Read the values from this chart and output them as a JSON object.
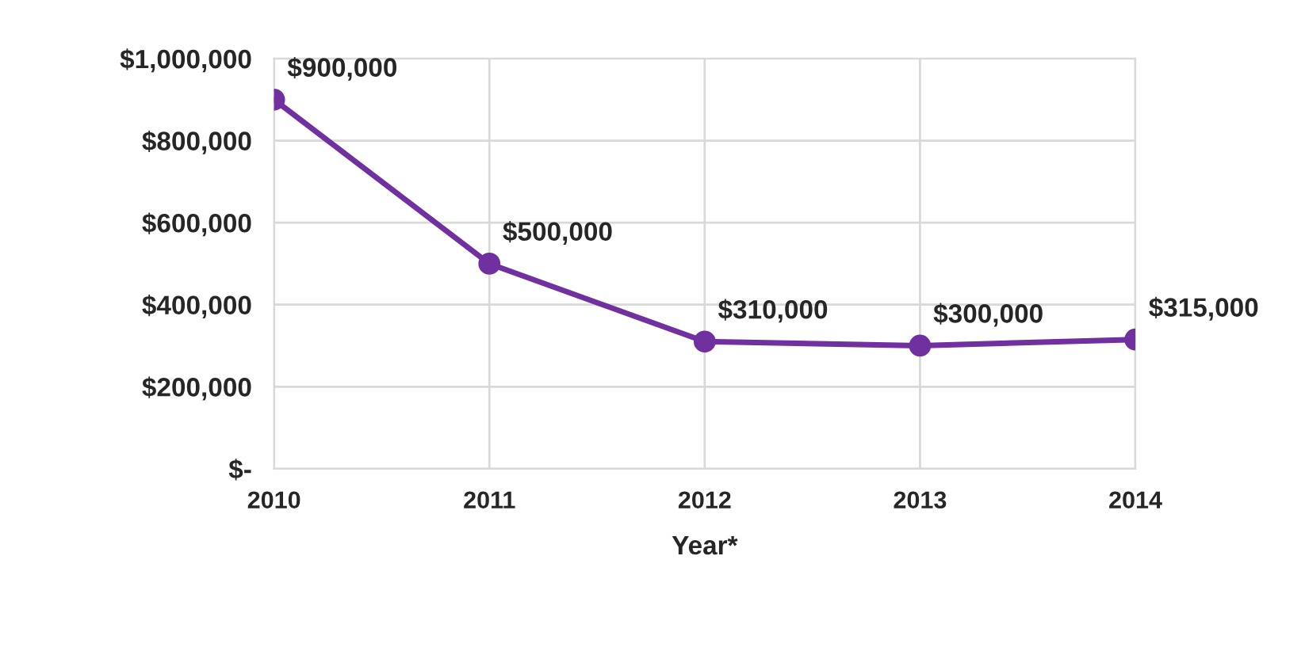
{
  "chart_data": {
    "type": "line",
    "xlabel": "Year*",
    "categories": [
      "2010",
      "2011",
      "2012",
      "2013",
      "2014"
    ],
    "series": [
      {
        "color": "#7030a0",
        "values": [
          900000,
          500000,
          310000,
          300000,
          315000
        ],
        "value_labels": [
          "$900,000",
          "$500,000",
          "$310,000",
          "$300,000",
          "$315,000"
        ]
      }
    ],
    "ylim": [
      0,
      1000000
    ],
    "yticks": [
      {
        "value": 0,
        "label": "$-"
      },
      {
        "value": 200000,
        "label": "$200,000"
      },
      {
        "value": 400000,
        "label": "$400,000"
      },
      {
        "value": 600000,
        "label": "$600,000"
      },
      {
        "value": 800000,
        "label": "$800,000"
      },
      {
        "value": 1000000,
        "label": "$1,000,000"
      }
    ],
    "grid": true,
    "marker": "circle",
    "line_style": "solid",
    "legend": false
  }
}
